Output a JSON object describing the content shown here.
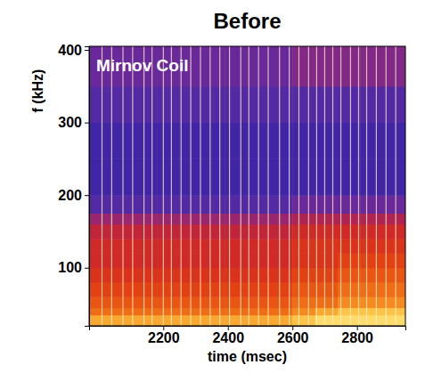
{
  "chart_data": {
    "type": "heatmap",
    "title": "Before",
    "annotation": "Mirnov Coil",
    "x_label": "time (msec)",
    "y_label": "f (kHz)",
    "xlim": [
      1970,
      2950
    ],
    "ylim": [
      20,
      405
    ],
    "xticks": [
      2200,
      2400,
      2600,
      2800
    ],
    "yticks": [
      100,
      200,
      300,
      400
    ],
    "grid": false,
    "x_bins": [
      1970,
      2040,
      2110,
      2180,
      2250,
      2320,
      2390,
      2460,
      2530,
      2600,
      2670,
      2740,
      2810,
      2880,
      2950
    ],
    "y_bins": [
      20,
      35,
      45,
      60,
      80,
      100,
      120,
      140,
      160,
      175,
      200,
      250,
      300,
      350,
      405
    ],
    "zlim": [
      0,
      10
    ],
    "cells": [
      [
        8,
        8,
        8,
        8,
        8,
        8,
        8,
        8,
        8,
        8.5,
        9,
        9,
        9,
        9
      ],
      [
        7,
        7,
        7,
        7,
        7,
        7,
        7,
        7,
        7,
        7.5,
        8,
        8.5,
        8.5,
        8.5
      ],
      [
        6.5,
        6.5,
        6.5,
        6.5,
        6.5,
        6.5,
        6.5,
        6.5,
        6.5,
        7,
        7,
        7.5,
        7.5,
        7.5
      ],
      [
        6,
        6,
        6,
        6,
        6,
        6,
        6,
        6,
        6,
        6.5,
        6.5,
        7,
        7,
        7
      ],
      [
        5.5,
        5.5,
        5.5,
        5.5,
        5.5,
        5.5,
        5.5,
        5.5,
        5.5,
        6,
        6,
        6.5,
        6.5,
        6.5
      ],
      [
        5,
        5,
        5,
        5,
        5,
        5,
        5,
        5,
        5,
        5.5,
        5.5,
        6,
        6,
        6
      ],
      [
        5,
        5,
        5,
        5,
        5,
        5,
        5,
        5,
        5,
        5.5,
        5.5,
        5.5,
        5.5,
        5.5
      ],
      [
        4.5,
        4.5,
        4.5,
        4.5,
        4.5,
        4.5,
        4.5,
        4.5,
        4.5,
        5,
        5,
        5,
        5,
        5
      ],
      [
        3.5,
        3.5,
        3.5,
        3.5,
        3.5,
        3.5,
        3.5,
        3.5,
        3.5,
        4,
        4,
        4,
        4,
        4
      ],
      [
        2,
        2,
        2,
        2,
        2,
        2,
        2,
        2,
        2,
        2.5,
        2.5,
        2.5,
        2.5,
        2.5
      ],
      [
        1.5,
        1.5,
        1.5,
        1.5,
        1.5,
        1.5,
        1.5,
        1.5,
        1.5,
        1.5,
        1.5,
        1.5,
        1.5,
        1.5
      ],
      [
        1.5,
        1.5,
        1.5,
        1.5,
        1.5,
        1.5,
        1.5,
        1.5,
        1.5,
        1.5,
        1.5,
        1.5,
        1.5,
        1.5
      ],
      [
        2,
        2,
        2,
        2,
        2,
        2,
        2,
        2,
        2,
        2,
        2,
        2,
        2,
        2
      ],
      [
        2.5,
        2.5,
        2.5,
        2.5,
        2.5,
        2.5,
        2.5,
        2.5,
        2.5,
        3,
        3,
        3,
        3,
        3
      ]
    ],
    "bursts": [
      2010,
      2040,
      2075,
      2105,
      2140,
      2165,
      2200,
      2225,
      2255,
      2285,
      2315,
      2345,
      2375,
      2405,
      2440,
      2465,
      2495,
      2525,
      2560,
      2590,
      2620,
      2650,
      2675,
      2700,
      2725,
      2750,
      2780,
      2805,
      2830,
      2860,
      2890,
      2920
    ]
  }
}
